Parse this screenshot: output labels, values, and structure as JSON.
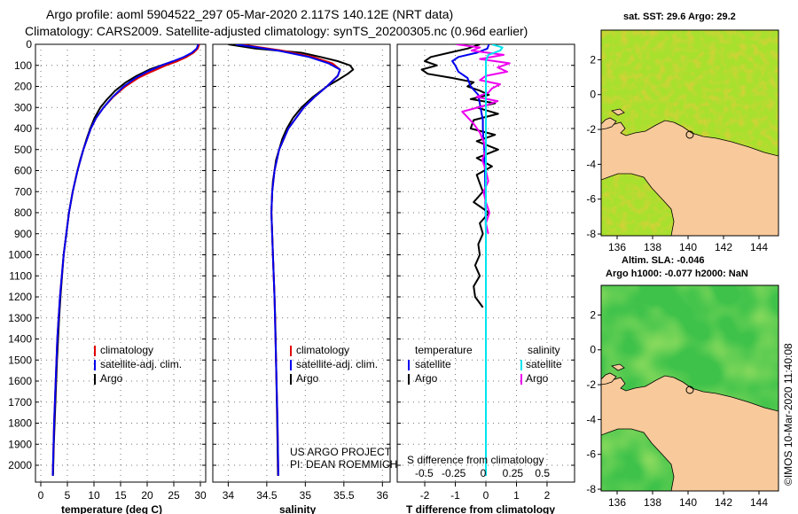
{
  "chart_data": {
    "type": "line",
    "title_line1": "Argo profile: aoml 5904522_297 05-Mar-2020 2.117S 140.12E (NRT data)",
    "title_line2": "Climatology: CARS2009. Satellite-adjusted climatology: synTS_20200305.nc (0.96d earlier)",
    "depth_axis": {
      "ylim": [
        0,
        2080
      ],
      "ticks": [
        0,
        100,
        200,
        300,
        400,
        500,
        600,
        700,
        800,
        900,
        1000,
        1100,
        1200,
        1300,
        1400,
        1500,
        1600,
        1700,
        1800,
        1900,
        2000
      ]
    },
    "panels": [
      {
        "id": "temperature",
        "xlabel": "temperature (deg C)",
        "xlim": [
          -1,
          31
        ],
        "xticks": [
          0,
          5,
          10,
          15,
          20,
          25,
          30
        ],
        "xtick_labels": [
          "0",
          "5",
          "10",
          "15",
          "20",
          "25",
          "30"
        ],
        "legend": [
          "climatology",
          "satellite-adj. clim.",
          "Argo"
        ],
        "series": [
          {
            "name": "Argo",
            "color": "#000000",
            "depth": [
              0,
              20,
              40,
              60,
              80,
              100,
              120,
              150,
              180,
              220,
              260,
              300,
              350,
              400,
              450,
              500,
              550,
              600,
              700,
              800,
              900,
              1000,
              1100,
              1200,
              1300,
              1400,
              1500,
              1600,
              1700,
              1800,
              1900,
              2000,
              2050
            ],
            "values": [
              29.6,
              29.4,
              28.6,
              27.0,
              25.0,
              22.6,
              20.4,
              18.0,
              16.0,
              14.0,
              12.5,
              11.2,
              10.1,
              9.3,
              8.6,
              8.0,
              7.4,
              6.9,
              6.0,
              5.3,
              4.8,
              4.3,
              4.0,
              3.7,
              3.45,
              3.25,
              3.05,
              2.9,
              2.75,
              2.6,
              2.45,
              2.35,
              2.3
            ]
          },
          {
            "name": "climatology",
            "color": "#e00000",
            "depth": [
              0,
              20,
              40,
              60,
              80,
              100,
              130,
              160,
              200,
              250,
              300,
              350,
              400,
              500,
              600,
              700,
              800,
              900,
              1000,
              1200,
              1400,
              1600,
              1800,
              2000,
              2050
            ],
            "values": [
              29.8,
              29.5,
              28.7,
              27.4,
              25.7,
              23.5,
              20.8,
              18.3,
              15.9,
              13.6,
              11.8,
              10.4,
              9.4,
              8.0,
              6.9,
              6.0,
              5.3,
              4.8,
              4.3,
              3.6,
              3.1,
              2.8,
              2.5,
              2.3,
              2.25
            ]
          },
          {
            "name": "satellite-adj. clim.",
            "color": "#0000ee",
            "depth": [
              0,
              20,
              40,
              60,
              80,
              100,
              130,
              160,
              200,
              250,
              300,
              350,
              400,
              500,
              600,
              700,
              800,
              900,
              1000,
              1200,
              1400,
              1600,
              1800,
              2000,
              2050
            ],
            "values": [
              29.6,
              29.3,
              28.4,
              26.9,
              24.9,
              22.7,
              20.0,
              17.8,
              15.6,
              13.5,
              11.8,
              10.4,
              9.4,
              8.0,
              6.9,
              6.0,
              5.3,
              4.8,
              4.3,
              3.6,
              3.1,
              2.8,
              2.5,
              2.3,
              2.25
            ]
          }
        ]
      },
      {
        "id": "salinity",
        "xlabel": "salinity",
        "xlim": [
          33.8,
          36.1
        ],
        "xticks": [
          34,
          34.5,
          35,
          35.5,
          36
        ],
        "xtick_labels": [
          "34",
          "34.5",
          "35",
          "35.5",
          "36"
        ],
        "legend": [
          "climatology",
          "satellite-adj. clim.",
          "Argo"
        ],
        "credit_line1": "US ARGO PROJECT",
        "credit_line2": "PI: DEAN ROEMMICH",
        "series": [
          {
            "name": "Argo",
            "color": "#000000",
            "depth": [
              0,
              20,
              40,
              60,
              80,
              100,
              120,
              140,
              170,
              200,
              250,
              300,
              350,
              400,
              450,
              500,
              550,
              600,
              650,
              700,
              800,
              900,
              1000,
              1100,
              1200,
              1300,
              1500,
              1700,
              1900,
              2050
            ],
            "values": [
              34.0,
              34.35,
              34.95,
              35.2,
              35.42,
              35.58,
              35.62,
              35.55,
              35.42,
              35.28,
              35.1,
              34.95,
              34.84,
              34.76,
              34.7,
              34.66,
              34.62,
              34.6,
              34.58,
              34.57,
              34.56,
              34.57,
              34.58,
              34.59,
              34.6,
              34.61,
              34.62,
              34.63,
              34.64,
              34.645
            ]
          },
          {
            "name": "climatology",
            "color": "#e00000",
            "depth": [
              0,
              30,
              60,
              90,
              120,
              150,
              200,
              250,
              300,
              400,
              500,
              600,
              700,
              800,
              1000,
              1200,
              1500,
              1800,
              2050
            ],
            "values": [
              34.15,
              34.7,
              35.1,
              35.35,
              35.45,
              35.42,
              35.28,
              35.12,
              34.98,
              34.78,
              34.66,
              34.6,
              34.57,
              34.56,
              34.58,
              34.6,
              34.62,
              34.64,
              34.65
            ]
          },
          {
            "name": "satellite-adj. clim.",
            "color": "#0000ee",
            "depth": [
              0,
              30,
              60,
              90,
              120,
              150,
              200,
              250,
              300,
              400,
              500,
              600,
              700,
              800,
              1000,
              1200,
              1500,
              1800,
              2050
            ],
            "values": [
              34.1,
              34.65,
              35.05,
              35.3,
              35.45,
              35.42,
              35.28,
              35.12,
              34.98,
              34.78,
              34.66,
              34.6,
              34.57,
              34.56,
              34.58,
              34.6,
              34.62,
              34.64,
              34.65
            ]
          }
        ]
      },
      {
        "id": "difference",
        "xlabel": "T difference from climatology",
        "xlim": [
          -2.9,
          2.9
        ],
        "xticks": [
          -2,
          -1,
          0,
          1,
          2
        ],
        "xtick_labels": [
          "-2",
          "-1",
          "0",
          "1",
          "2"
        ],
        "top_axis_label": "S difference from climatology",
        "sticks": [
          -0.5,
          -0.25,
          0,
          0.25,
          0.5
        ],
        "stick_labels": [
          "-0.5",
          "-0.25",
          "0",
          "0.25",
          "0.5"
        ],
        "legend_temperature_title": "temperature",
        "legend_salinity_title": "salinity",
        "legend_temperature": [
          "satellite",
          "Argo"
        ],
        "legend_salinity": [
          "satellite",
          "Argo"
        ],
        "series": [
          {
            "name": "T diff Argo",
            "color": "#000000",
            "depth": [
              0,
              20,
              40,
              60,
              80,
              100,
              120,
              140,
              160,
              180,
              200,
              220,
              240,
              260,
              280,
              300,
              330,
              360,
              400,
              430,
              460,
              500,
              540,
              580,
              620,
              660,
              700,
              750,
              800,
              850,
              900,
              950,
              1000,
              1050,
              1100,
              1150,
              1200,
              1250
            ],
            "values": [
              -0.2,
              -0.6,
              -1.2,
              -1.8,
              -2.0,
              -1.6,
              -2.1,
              -1.9,
              -1.1,
              -0.4,
              -0.6,
              -0.2,
              0.1,
              -0.5,
              0.3,
              -0.3,
              0.4,
              -0.4,
              -0.5,
              0.3,
              -0.3,
              0.4,
              -0.3,
              0.2,
              -0.3,
              -0.2,
              -0.1,
              -0.4,
              0.1,
              -0.2,
              -0.1,
              -0.25,
              -0.2,
              -0.35,
              -0.2,
              -0.4,
              -0.35,
              -0.1
            ]
          },
          {
            "name": "T diff satellite",
            "color": "#0000ee",
            "depth": [
              0,
              20,
              40,
              60,
              80,
              100,
              130,
              160,
              200,
              240,
              280,
              320,
              360,
              400,
              450,
              500,
              550,
              600,
              700,
              800,
              900,
              1000,
              1200,
              1400,
              1600,
              1800,
              2000,
              2050
            ],
            "values": [
              0.1,
              0.05,
              -0.3,
              -0.9,
              -1.1,
              -1.0,
              -0.9,
              -0.6,
              -0.5,
              -0.25,
              -0.2,
              -0.15,
              -0.1,
              -0.1,
              -0.08,
              -0.05,
              -0.05,
              -0.03,
              -0.02,
              -0.01,
              0,
              0,
              0,
              0,
              0,
              0,
              0,
              0
            ]
          },
          {
            "name": "S diff Argo",
            "color": "#ee00ee",
            "depth": [
              0,
              15,
              30,
              50,
              70,
              90,
              110,
              130,
              150,
              170,
              190,
              210,
              230,
              250,
              270,
              290,
              320,
              350,
              380,
              420,
              460,
              500,
              550,
              600,
              650,
              700,
              750,
              800,
              850,
              900
            ],
            "values": [
              -0.25,
              -0.05,
              -0.12,
              0.15,
              -0.05,
              0.2,
              0.1,
              0.18,
              0.0,
              -0.05,
              0.12,
              0.05,
              0.02,
              -0.08,
              0.1,
              0.0,
              -0.2,
              -0.15,
              -0.1,
              -0.05,
              -0.02,
              0.0,
              -0.03,
              0.0,
              0.02,
              -0.02,
              0.0,
              0.03,
              0.0,
              0.02
            ]
          },
          {
            "name": "S diff satellite",
            "color": "#00e5ee",
            "depth": [
              0,
              15,
              30,
              50,
              80,
              120,
              200,
              300,
              500,
              1000,
              1500,
              2050
            ],
            "values": [
              0.05,
              0.14,
              0.12,
              0.02,
              0.0,
              0.0,
              0.0,
              0.0,
              0.0,
              0.0,
              0.0,
              0.0
            ]
          }
        ]
      }
    ],
    "maps": [
      {
        "id": "sst-map",
        "title": "sat. SST: 29.6 Argo: 29.2",
        "xlim": [
          135.1,
          145.1
        ],
        "ylim": [
          -8.1,
          3.7
        ],
        "xticks": [
          136,
          138,
          140,
          142,
          144
        ],
        "yticks": [
          2,
          0,
          -2,
          -4,
          -6,
          -8
        ],
        "profile_lon": 140.12,
        "profile_lat": -2.117,
        "ocean_color": "#a8e02e",
        "land_color": "#f8c99a"
      },
      {
        "id": "sla-map",
        "title_line1": "Altim. SLA: -0.046",
        "title_line2": "Argo h1000: -0.077 h2000: NaN",
        "xlim": [
          135.1,
          145.1
        ],
        "ylim": [
          -8.1,
          3.7
        ],
        "xticks": [
          136,
          138,
          140,
          142,
          144
        ],
        "yticks": [
          2,
          0,
          -2,
          -4,
          -6,
          -8
        ],
        "profile_lon": 140.12,
        "profile_lat": -2.117,
        "ocean_color": "#3fc24a",
        "land_color": "#f8c99a"
      }
    ],
    "stamp": "©IMOS 10-Mar-2020 11:40:08"
  }
}
